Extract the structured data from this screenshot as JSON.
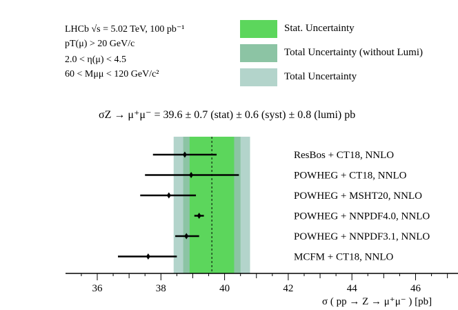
{
  "header": {
    "conditions": [
      "LHCb √s = 5.02 TeV, 100 pb⁻¹",
      "pT(μ) > 20 GeV/c",
      "2.0 < η(μ) < 4.5",
      "60 < Mμμ < 120 GeV/c²"
    ],
    "result": "σZ → μ⁺μ⁻ = 39.6 ± 0.7 (stat) ± 0.6 (syst) ± 0.8 (lumi)  pb"
  },
  "legend": [
    {
      "label": "Stat. Uncertainty",
      "color": "#5cd65c"
    },
    {
      "label": "Total Uncertainty (without Lumi)",
      "color": "#8cc4a4"
    },
    {
      "label": "Total Uncertainty",
      "color": "#b3d4cb"
    }
  ],
  "chart_data": {
    "type": "scatter",
    "xlabel": "σ ( pp → Z → μ⁺μ⁻ )  [pb]",
    "xlim": [
      35,
      47
    ],
    "xticks": [
      36,
      38,
      40,
      42,
      44,
      46
    ],
    "measurement": {
      "value": 39.6,
      "stat_band": [
        38.9,
        40.3
      ],
      "total_without_lumi_band": [
        38.7,
        40.5
      ],
      "total_band": [
        38.4,
        40.8
      ]
    },
    "predictions": [
      {
        "label": "ResBos + CT18, NNLO",
        "value": 38.75,
        "low": 37.75,
        "high": 39.75
      },
      {
        "label": "POWHEG + CT18, NNLO",
        "value": 38.95,
        "low": 37.5,
        "high": 40.45
      },
      {
        "label": "POWHEG + MSHT20, NNLO",
        "value": 38.25,
        "low": 37.35,
        "high": 39.1
      },
      {
        "label": "POWHEG + NNPDF4.0, NNLO",
        "value": 39.2,
        "low": 39.05,
        "high": 39.35
      },
      {
        "label": "POWHEG + NNPDF3.1, NNLO",
        "value": 38.8,
        "low": 38.45,
        "high": 39.2
      },
      {
        "label": "MCFM + CT18, NNLO",
        "value": 37.6,
        "low": 36.65,
        "high": 38.5
      }
    ]
  }
}
